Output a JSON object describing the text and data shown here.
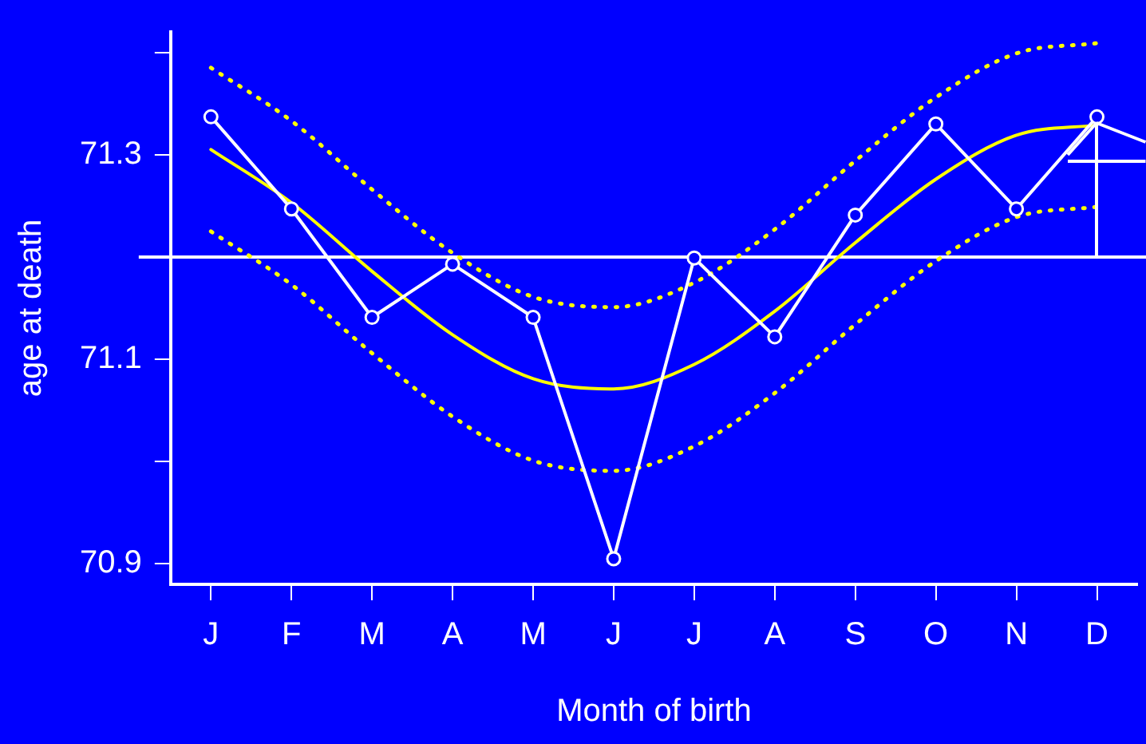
{
  "chart_data": {
    "type": "line",
    "xlabel": "Month of birth",
    "ylabel": "age at death",
    "categories": [
      "J",
      "F",
      "M",
      "A",
      "M",
      "J",
      "J",
      "A",
      "S",
      "O",
      "N",
      "D"
    ],
    "series": [
      {
        "color": "#ffffff",
        "marker": "circle",
        "line_style": "solid",
        "values": [
          71.337,
          71.247,
          71.141,
          71.193,
          71.141,
          70.905,
          71.199,
          71.122,
          71.241,
          71.33,
          71.247,
          71.337
        ]
      },
      {
        "color": "#ffff00",
        "marker": "none",
        "line_style": "solid",
        "values": [
          71.305,
          71.253,
          71.186,
          71.124,
          71.081,
          71.071,
          71.095,
          71.147,
          71.214,
          71.276,
          71.319,
          71.329
        ]
      },
      {
        "color": "#ffff00",
        "marker": "none",
        "line_style": "dotted",
        "values": [
          71.385,
          71.333,
          71.266,
          71.204,
          71.161,
          71.151,
          71.175,
          71.227,
          71.294,
          71.356,
          71.399,
          71.409
        ]
      },
      {
        "color": "#ffff00",
        "marker": "none",
        "line_style": "dotted",
        "values": [
          71.225,
          71.173,
          71.106,
          71.044,
          71.001,
          70.991,
          71.015,
          71.067,
          71.134,
          71.196,
          71.239,
          71.249
        ]
      }
    ],
    "ylim": [
      70.88,
      71.42
    ],
    "yticks": [
      70.9,
      {
        "value": 71.0,
        "label": null
      },
      71.1,
      {
        "value": 71.2,
        "label": null
      },
      71.3,
      {
        "value": 71.4,
        "label": null
      }
    ],
    "ref_lines": [
      {
        "axis": "y",
        "value": 71.2,
        "color": "#ffffff"
      }
    ],
    "grid": false,
    "legend": false
  }
}
